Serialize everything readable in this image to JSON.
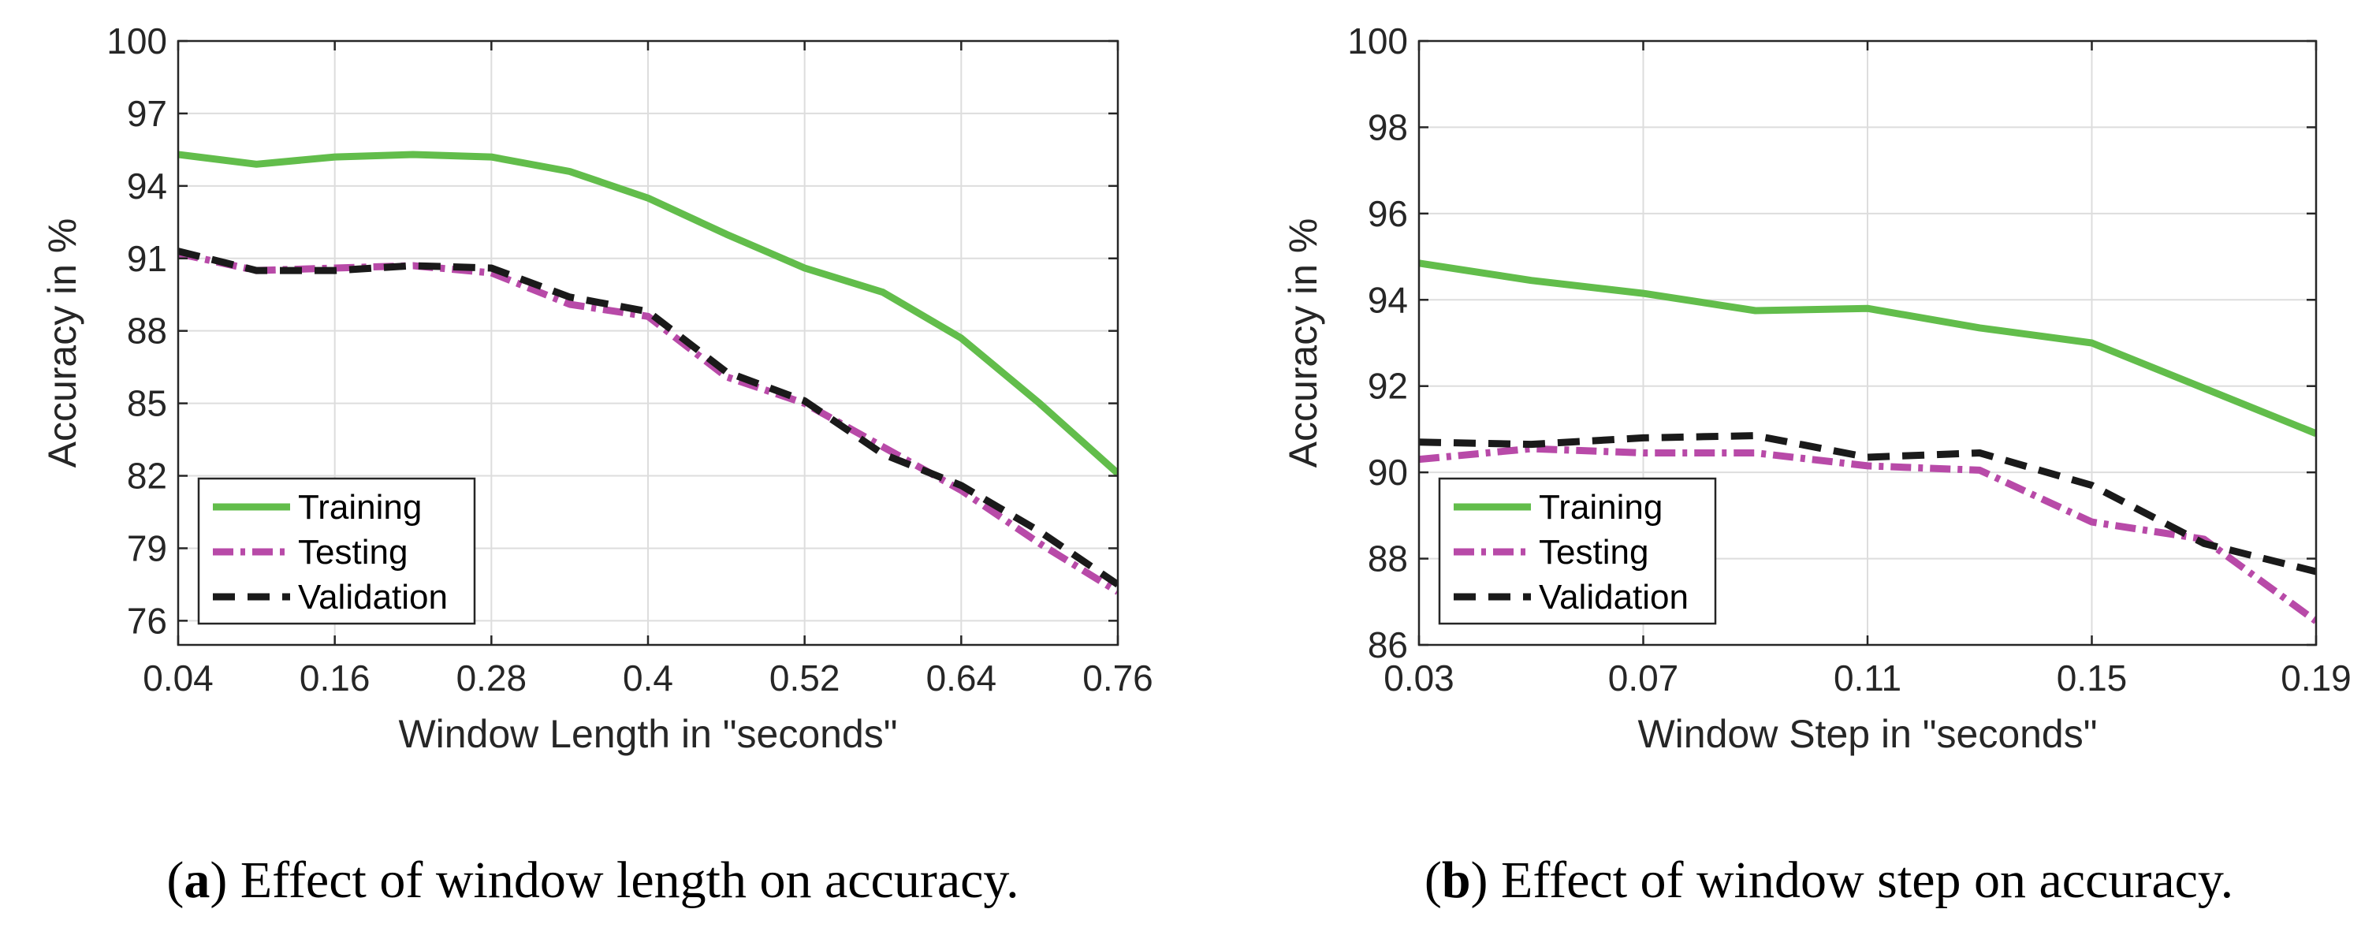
{
  "colors": {
    "training": "#62bd4b",
    "testing": "#b84aa8",
    "validation": "#1a1a1a",
    "grid": "#dddddd",
    "axis": "#262626"
  },
  "captions": [
    {
      "label": "a",
      "text": ") Effect of window length on accuracy."
    },
    {
      "label": "b",
      "text": ") Effect of window step on accuracy."
    }
  ],
  "chart_data": [
    {
      "type": "line",
      "xlabel": "Window Length in \"seconds\"",
      "ylabel": "Accuracy in %",
      "xlim": [
        0.04,
        0.76
      ],
      "ylim": [
        75,
        100
      ],
      "xticks": [
        0.04,
        0.16,
        0.28,
        0.4,
        0.52,
        0.64,
        0.76
      ],
      "xtick_labels": [
        "0.04",
        "0.16",
        "0.28",
        "0.4",
        "0.52",
        "0.64",
        "0.76"
      ],
      "yticks": [
        76,
        79,
        82,
        85,
        88,
        91,
        94,
        97,
        100
      ],
      "ytick_labels": [
        "76",
        "79",
        "82",
        "85",
        "88",
        "91",
        "94",
        "97",
        "100"
      ],
      "grid": true,
      "legend_position": "bottom-left",
      "x": [
        0.04,
        0.1,
        0.16,
        0.22,
        0.28,
        0.34,
        0.4,
        0.46,
        0.52,
        0.58,
        0.64,
        0.7,
        0.76
      ],
      "series": [
        {
          "name": "Training",
          "style": "solid",
          "values": [
            95.3,
            94.9,
            95.2,
            95.3,
            95.2,
            94.6,
            93.5,
            92.0,
            90.6,
            89.6,
            87.7,
            85.0,
            82.1
          ]
        },
        {
          "name": "Testing",
          "style": "dashdot",
          "values": [
            91.2,
            90.5,
            90.6,
            90.7,
            90.4,
            89.1,
            88.6,
            86.1,
            85.0,
            83.2,
            81.4,
            79.2,
            77.2
          ]
        },
        {
          "name": "Validation",
          "style": "dashed",
          "values": [
            91.3,
            90.5,
            90.5,
            90.7,
            90.6,
            89.4,
            88.8,
            86.3,
            85.1,
            82.9,
            81.6,
            79.7,
            77.5
          ]
        }
      ]
    },
    {
      "type": "line",
      "xlabel": "Window Step in \"seconds\"",
      "ylabel": "Accuracy in %",
      "xlim": [
        0.03,
        0.19
      ],
      "ylim": [
        86,
        100
      ],
      "xticks": [
        0.03,
        0.07,
        0.11,
        0.15,
        0.19
      ],
      "xtick_labels": [
        "0.03",
        "0.07",
        "0.11",
        "0.15",
        "0.19"
      ],
      "yticks": [
        86,
        88,
        90,
        92,
        94,
        96,
        98,
        100
      ],
      "ytick_labels": [
        "86",
        "88",
        "90",
        "92",
        "94",
        "96",
        "98",
        "100"
      ],
      "grid": true,
      "legend_position": "bottom-left",
      "x": [
        0.03,
        0.05,
        0.07,
        0.09,
        0.11,
        0.13,
        0.15,
        0.17,
        0.19
      ],
      "series": [
        {
          "name": "Training",
          "style": "solid",
          "values": [
            94.85,
            94.45,
            94.15,
            93.75,
            93.8,
            93.35,
            93.0,
            91.95,
            90.9
          ]
        },
        {
          "name": "Testing",
          "style": "dashdot",
          "values": [
            90.3,
            90.55,
            90.45,
            90.45,
            90.15,
            90.05,
            88.85,
            88.45,
            86.55
          ]
        },
        {
          "name": "Validation",
          "style": "dashed",
          "values": [
            90.7,
            90.65,
            90.8,
            90.85,
            90.35,
            90.45,
            89.7,
            88.35,
            87.7
          ]
        }
      ]
    }
  ]
}
